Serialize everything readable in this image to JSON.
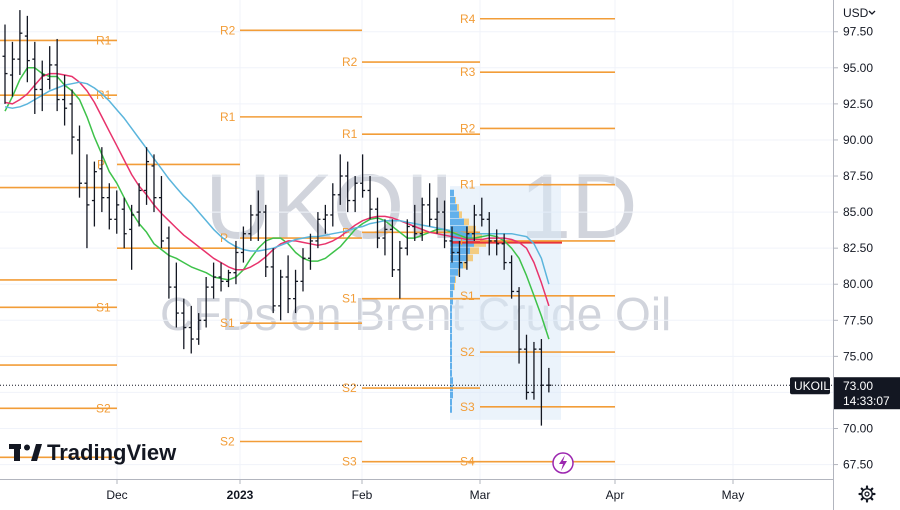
{
  "chart_data": {
    "type": "candlestick",
    "watermark": {
      "symbol": "UKOIL",
      "interval": "1D",
      "description": "CFDs on Brent Crude Oil"
    },
    "brand": "TradingView",
    "currency": "USD",
    "y_axis": {
      "ticks": [
        "97.50",
        "95.00",
        "92.50",
        "90.00",
        "87.50",
        "85.00",
        "82.50",
        "80.00",
        "77.50",
        "75.00",
        "72.50",
        "70.00",
        "67.50"
      ],
      "ylim": [
        66.5,
        99.7
      ]
    },
    "x_axis": {
      "ticks": [
        "Dec",
        "2023",
        "Feb",
        "Mar",
        "Apr",
        "May"
      ]
    },
    "price_badge": {
      "symbol": "UKOIL",
      "price": "73.00",
      "countdown": "14:33:07",
      "value": 73.0
    },
    "ohlc": [
      {
        "o": 95.8,
        "h": 98.0,
        "l": 92.5,
        "c": 94.6
      },
      {
        "o": 94.5,
        "h": 96.8,
        "l": 93.0,
        "c": 95.6
      },
      {
        "o": 95.6,
        "h": 99.0,
        "l": 94.5,
        "c": 97.4
      },
      {
        "o": 97.2,
        "h": 98.6,
        "l": 94.0,
        "c": 95.5
      },
      {
        "o": 95.6,
        "h": 96.8,
        "l": 91.8,
        "c": 93.5
      },
      {
        "o": 93.5,
        "h": 95.5,
        "l": 92.0,
        "c": 94.5
      },
      {
        "o": 94.2,
        "h": 96.5,
        "l": 93.5,
        "c": 95.2
      },
      {
        "o": 95.2,
        "h": 97.0,
        "l": 92.0,
        "c": 92.8
      },
      {
        "o": 92.8,
        "h": 94.5,
        "l": 91.0,
        "c": 92.2
      },
      {
        "o": 92.5,
        "h": 93.5,
        "l": 89.0,
        "c": 90.2
      },
      {
        "o": 90.0,
        "h": 91.0,
        "l": 86.0,
        "c": 87.0
      },
      {
        "o": 87.0,
        "h": 89.0,
        "l": 82.5,
        "c": 85.5
      },
      {
        "o": 85.8,
        "h": 88.5,
        "l": 84.0,
        "c": 87.8
      },
      {
        "o": 88.0,
        "h": 89.5,
        "l": 85.0,
        "c": 86.0
      },
      {
        "o": 86.0,
        "h": 87.0,
        "l": 83.8,
        "c": 84.5
      },
      {
        "o": 84.5,
        "h": 86.5,
        "l": 83.5,
        "c": 85.5
      },
      {
        "o": 85.2,
        "h": 86.0,
        "l": 82.5,
        "c": 83.5
      },
      {
        "o": 83.8,
        "h": 85.5,
        "l": 81.0,
        "c": 84.8
      },
      {
        "o": 85.0,
        "h": 87.0,
        "l": 84.0,
        "c": 86.5
      },
      {
        "o": 86.5,
        "h": 89.5,
        "l": 85.5,
        "c": 88.5
      },
      {
        "o": 88.2,
        "h": 89.0,
        "l": 85.0,
        "c": 86.0
      },
      {
        "o": 86.0,
        "h": 87.5,
        "l": 82.5,
        "c": 83.0
      },
      {
        "o": 83.2,
        "h": 84.0,
        "l": 79.0,
        "c": 79.8
      },
      {
        "o": 79.8,
        "h": 81.5,
        "l": 77.0,
        "c": 78.0
      },
      {
        "o": 78.0,
        "h": 79.0,
        "l": 75.5,
        "c": 77.0
      },
      {
        "o": 77.0,
        "h": 78.5,
        "l": 75.2,
        "c": 76.2
      },
      {
        "o": 76.2,
        "h": 78.0,
        "l": 75.8,
        "c": 77.5
      },
      {
        "o": 77.5,
        "h": 80.5,
        "l": 77.0,
        "c": 79.8
      },
      {
        "o": 79.8,
        "h": 81.5,
        "l": 79.0,
        "c": 80.5
      },
      {
        "o": 80.5,
        "h": 81.5,
        "l": 79.5,
        "c": 80.2
      },
      {
        "o": 80.2,
        "h": 81.0,
        "l": 79.8,
        "c": 80.8
      },
      {
        "o": 80.8,
        "h": 83.0,
        "l": 80.0,
        "c": 82.2
      },
      {
        "o": 82.2,
        "h": 84.0,
        "l": 81.5,
        "c": 83.5
      },
      {
        "o": 83.5,
        "h": 85.5,
        "l": 83.0,
        "c": 84.8
      },
      {
        "o": 84.8,
        "h": 86.5,
        "l": 83.0,
        "c": 85.0
      },
      {
        "o": 85.0,
        "h": 85.5,
        "l": 80.5,
        "c": 81.2
      },
      {
        "o": 81.2,
        "h": 82.5,
        "l": 78.0,
        "c": 78.5
      },
      {
        "o": 78.5,
        "h": 81.0,
        "l": 77.5,
        "c": 80.5
      },
      {
        "o": 80.5,
        "h": 82.0,
        "l": 78.0,
        "c": 79.0
      },
      {
        "o": 79.0,
        "h": 81.0,
        "l": 78.0,
        "c": 80.2
      },
      {
        "o": 80.2,
        "h": 82.5,
        "l": 79.5,
        "c": 81.8
      },
      {
        "o": 81.8,
        "h": 83.5,
        "l": 81.0,
        "c": 83.0
      },
      {
        "o": 83.0,
        "h": 85.0,
        "l": 82.5,
        "c": 84.5
      },
      {
        "o": 84.5,
        "h": 85.5,
        "l": 83.5,
        "c": 84.8
      },
      {
        "o": 84.8,
        "h": 87.0,
        "l": 84.0,
        "c": 86.2
      },
      {
        "o": 86.2,
        "h": 89.0,
        "l": 85.5,
        "c": 87.5
      },
      {
        "o": 87.5,
        "h": 88.5,
        "l": 85.0,
        "c": 85.8
      },
      {
        "o": 85.8,
        "h": 87.5,
        "l": 85.0,
        "c": 87.0
      },
      {
        "o": 87.0,
        "h": 89.0,
        "l": 86.0,
        "c": 86.5
      },
      {
        "o": 86.5,
        "h": 87.5,
        "l": 84.5,
        "c": 85.2
      },
      {
        "o": 85.2,
        "h": 86.0,
        "l": 82.5,
        "c": 83.2
      },
      {
        "o": 83.2,
        "h": 84.5,
        "l": 82.0,
        "c": 83.8
      },
      {
        "o": 83.8,
        "h": 84.5,
        "l": 80.5,
        "c": 81.0
      },
      {
        "o": 81.0,
        "h": 83.0,
        "l": 79.0,
        "c": 82.5
      },
      {
        "o": 82.5,
        "h": 84.5,
        "l": 82.0,
        "c": 84.0
      },
      {
        "o": 84.0,
        "h": 85.5,
        "l": 83.0,
        "c": 83.5
      },
      {
        "o": 83.5,
        "h": 86.0,
        "l": 83.0,
        "c": 85.5
      },
      {
        "o": 85.5,
        "h": 87.0,
        "l": 84.0,
        "c": 84.5
      },
      {
        "o": 84.5,
        "h": 86.0,
        "l": 83.5,
        "c": 85.0
      },
      {
        "o": 85.0,
        "h": 85.8,
        "l": 82.5,
        "c": 83.0
      },
      {
        "o": 83.0,
        "h": 84.0,
        "l": 81.5,
        "c": 82.2
      },
      {
        "o": 82.2,
        "h": 83.0,
        "l": 80.5,
        "c": 81.5
      },
      {
        "o": 81.5,
        "h": 84.0,
        "l": 81.0,
        "c": 83.5
      },
      {
        "o": 83.5,
        "h": 85.5,
        "l": 83.0,
        "c": 84.8
      },
      {
        "o": 84.8,
        "h": 86.0,
        "l": 84.0,
        "c": 84.5
      },
      {
        "o": 84.5,
        "h": 85.0,
        "l": 82.0,
        "c": 83.0
      },
      {
        "o": 83.0,
        "h": 83.8,
        "l": 82.0,
        "c": 82.8
      },
      {
        "o": 82.8,
        "h": 83.5,
        "l": 81.0,
        "c": 81.5
      },
      {
        "o": 81.5,
        "h": 82.0,
        "l": 79.0,
        "c": 79.5
      },
      {
        "o": 79.5,
        "h": 79.8,
        "l": 74.5,
        "c": 75.5
      },
      {
        "o": 75.5,
        "h": 76.5,
        "l": 72.0,
        "c": 72.5
      },
      {
        "o": 72.5,
        "h": 76.0,
        "l": 72.0,
        "c": 75.5
      },
      {
        "o": 75.5,
        "h": 76.2,
        "l": 70.2,
        "c": 73.0
      },
      {
        "o": 73.0,
        "h": 74.2,
        "l": 72.5,
        "c": 73.0
      }
    ],
    "moving_averages": [
      {
        "color": "#3ec24a",
        "values": [
          92.0,
          93.0,
          94.2,
          95.0,
          95.0,
          94.6,
          94.4,
          94.4,
          93.8,
          93.4,
          92.8,
          91.6,
          90.2,
          89.0,
          87.8,
          87.0,
          86.0,
          85.0,
          84.2,
          83.6,
          82.8,
          82.4,
          82.0,
          81.8,
          81.5,
          81.2,
          81.0,
          80.8,
          80.5,
          80.4,
          80.3,
          80.5,
          81.0,
          81.8,
          82.5,
          83.0,
          83.2,
          83.2,
          82.8,
          82.2,
          81.8,
          81.6,
          81.6,
          81.8,
          82.2,
          82.6,
          83.2,
          83.8,
          84.2,
          84.5,
          84.6,
          84.4,
          84.0,
          83.6,
          83.2,
          83.2,
          83.4,
          83.6,
          83.8,
          83.8,
          83.6,
          83.4,
          83.2,
          83.2,
          83.3,
          83.4,
          83.3,
          83.0,
          82.5,
          81.8,
          80.6,
          79.2,
          77.8,
          76.2
        ]
      },
      {
        "color": "#e8336c",
        "values": [
          92.6,
          92.5,
          92.8,
          93.2,
          93.8,
          94.4,
          94.6,
          94.6,
          94.5,
          94.4,
          94.0,
          93.4,
          92.6,
          91.6,
          90.6,
          89.6,
          88.6,
          87.6,
          86.8,
          86.2,
          85.5,
          84.9,
          84.4,
          83.9,
          83.4,
          83.0,
          82.6,
          82.2,
          81.8,
          81.5,
          81.2,
          81.0,
          81.0,
          81.2,
          81.5,
          81.9,
          82.4,
          82.8,
          83.0,
          83.0,
          82.9,
          82.8,
          82.7,
          82.8,
          83.0,
          83.3,
          83.7,
          84.1,
          84.4,
          84.6,
          84.7,
          84.7,
          84.6,
          84.4,
          84.2,
          84.0,
          83.8,
          83.6,
          83.5,
          83.4,
          83.3,
          83.2,
          83.1,
          83.1,
          83.1,
          83.2,
          83.2,
          83.2,
          83.1,
          82.9,
          82.5,
          81.5,
          80.1,
          78.5
        ]
      },
      {
        "color": "#5bb5dc",
        "values": [
          92.3,
          92.2,
          92.3,
          92.5,
          92.8,
          93.1,
          93.4,
          93.6,
          93.8,
          93.9,
          94.0,
          93.9,
          93.6,
          93.2,
          92.7,
          92.1,
          91.5,
          90.8,
          90.1,
          89.4,
          88.7,
          88.0,
          87.3,
          86.7,
          86.1,
          85.6,
          85.0,
          84.4,
          83.8,
          83.3,
          82.9,
          82.6,
          82.4,
          82.3,
          82.3,
          82.4,
          82.5,
          82.7,
          82.9,
          83.1,
          83.2,
          83.3,
          83.3,
          83.4,
          83.5,
          83.6,
          83.7,
          83.9,
          84.0,
          84.2,
          84.3,
          84.4,
          84.4,
          84.4,
          84.3,
          84.2,
          84.1,
          84.0,
          83.9,
          83.8,
          83.7,
          83.6,
          83.5,
          83.5,
          83.5,
          83.5,
          83.5,
          83.5,
          83.5,
          83.4,
          83.3,
          82.8,
          81.8,
          80.0
        ]
      }
    ],
    "pivot_levels": [
      {
        "label": "R1",
        "value": 96.9,
        "x0": 0,
        "x1": 117
      },
      {
        "label": "R1",
        "value": 93.1,
        "x0": 0,
        "x1": 117
      },
      {
        "label": "",
        "value": 86.7,
        "x0": 0,
        "x1": 117
      },
      {
        "label": "",
        "value": 80.3,
        "x0": 0,
        "x1": 117
      },
      {
        "label": "S1",
        "value": 78.4,
        "x0": 0,
        "x1": 117
      },
      {
        "label": "",
        "value": 74.4,
        "x0": 0,
        "x1": 117
      },
      {
        "label": "S2",
        "value": 71.4,
        "x0": 0,
        "x1": 117
      },
      {
        "label": "",
        "value": 68.0,
        "x0": 0,
        "x1": 117
      },
      {
        "label": "P",
        "value": 88.3,
        "x0": 117,
        "x1": 240
      },
      {
        "label": "",
        "value": 82.5,
        "x0": 117,
        "x1": 240
      },
      {
        "label": "R2",
        "value": 97.6,
        "x0": 240,
        "x1": 362
      },
      {
        "label": "R1",
        "value": 91.6,
        "x0": 240,
        "x1": 362
      },
      {
        "label": "P",
        "value": 83.2,
        "x0": 240,
        "x1": 362
      },
      {
        "label": "S1",
        "value": 77.3,
        "x0": 240,
        "x1": 362
      },
      {
        "label": "S2",
        "value": 69.1,
        "x0": 240,
        "x1": 362
      },
      {
        "label": "R2",
        "value": 95.4,
        "x0": 362,
        "x1": 480
      },
      {
        "label": "R1",
        "value": 90.4,
        "x0": 362,
        "x1": 480
      },
      {
        "label": "P",
        "value": 83.6,
        "x0": 362,
        "x1": 480
      },
      {
        "label": "S1",
        "value": 79.0,
        "x0": 362,
        "x1": 480
      },
      {
        "label": "S2",
        "value": 72.8,
        "x0": 362,
        "x1": 480
      },
      {
        "label": "S3",
        "value": 67.7,
        "x0": 362,
        "x1": 480
      },
      {
        "label": "R4",
        "value": 98.4,
        "x0": 480,
        "x1": 615
      },
      {
        "label": "R3",
        "value": 94.7,
        "x0": 480,
        "x1": 615
      },
      {
        "label": "R2",
        "value": 90.8,
        "x0": 480,
        "x1": 615
      },
      {
        "label": "R1",
        "value": 86.9,
        "x0": 480,
        "x1": 615
      },
      {
        "label": "P",
        "value": 83.0,
        "x0": 480,
        "x1": 615
      },
      {
        "label": "S1",
        "value": 79.2,
        "x0": 480,
        "x1": 615
      },
      {
        "label": "S2",
        "value": 75.3,
        "x0": 480,
        "x1": 615
      },
      {
        "label": "S3",
        "value": 71.5,
        "x0": 480,
        "x1": 615
      },
      {
        "label": "S4",
        "value": 67.7,
        "x0": 480,
        "x1": 615
      }
    ],
    "poc_price": 82.9,
    "colors": {
      "pivot": "#f29d38",
      "poc": "#e8333a",
      "volume_up": "#4aa3e8",
      "volume_down": "#f5c46c",
      "value_area": "#dbe9f7",
      "candle": "#131722",
      "badge": "#131722"
    }
  }
}
